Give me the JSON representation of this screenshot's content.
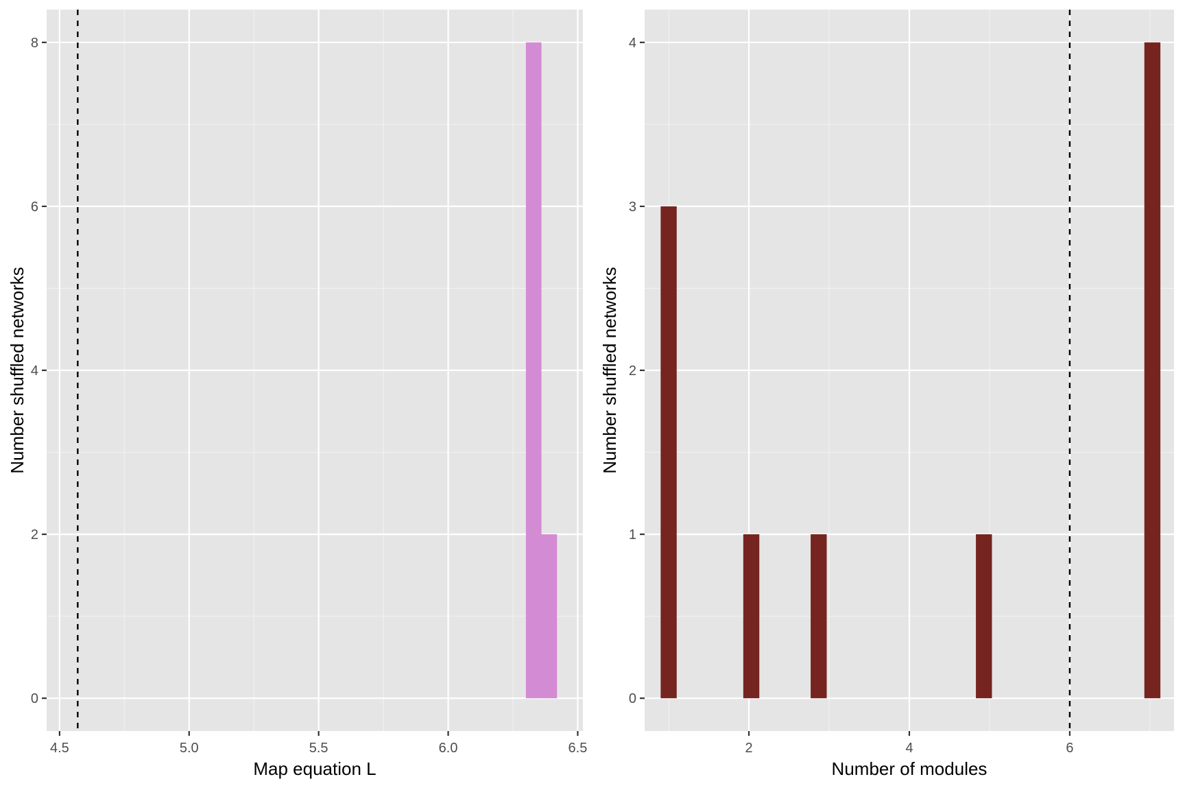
{
  "chart_data": [
    {
      "type": "bar",
      "subtype": "histogram",
      "xlabel": "Map equation L",
      "ylabel": "Number shuffled networks",
      "xlim": [
        4.45,
        6.52
      ],
      "ylim": [
        -0.4,
        8.4
      ],
      "xticks": [
        4.5,
        5.0,
        5.5,
        6.0,
        6.5
      ],
      "xtick_labels": [
        "4.5",
        "5.0",
        "5.5",
        "6.0",
        "6.5"
      ],
      "yticks": [
        0,
        2,
        4,
        6,
        8
      ],
      "ytick_labels": [
        "0",
        "2",
        "4",
        "6",
        "8"
      ],
      "bins": [
        {
          "x_start": 6.3,
          "x_end": 6.36,
          "count": 8
        },
        {
          "x_start": 6.36,
          "x_end": 6.42,
          "count": 2
        }
      ],
      "bar_color": "#d38bd3",
      "reference_line": {
        "x": 4.57,
        "style": "dashed"
      }
    },
    {
      "type": "bar",
      "subtype": "histogram",
      "xlabel": "Number of modules",
      "ylabel": "Number shuffled networks",
      "xlim": [
        0.7,
        7.3
      ],
      "ylim": [
        -0.2,
        4.2
      ],
      "xticks": [
        2,
        4,
        6
      ],
      "xtick_labels": [
        "2",
        "4",
        "6"
      ],
      "yticks": [
        0,
        1,
        2,
        3,
        4
      ],
      "ytick_labels": [
        "0",
        "1",
        "2",
        "3",
        "4"
      ],
      "bins": [
        {
          "x_start": 0.9,
          "x_end": 1.1,
          "count": 3
        },
        {
          "x_start": 1.93,
          "x_end": 2.13,
          "count": 1
        },
        {
          "x_start": 2.77,
          "x_end": 2.97,
          "count": 1
        },
        {
          "x_start": 4.83,
          "x_end": 5.03,
          "count": 1
        },
        {
          "x_start": 6.93,
          "x_end": 7.13,
          "count": 4
        }
      ],
      "bar_color": "#75241f",
      "reference_line": {
        "x": 6.0,
        "style": "dashed"
      }
    }
  ]
}
